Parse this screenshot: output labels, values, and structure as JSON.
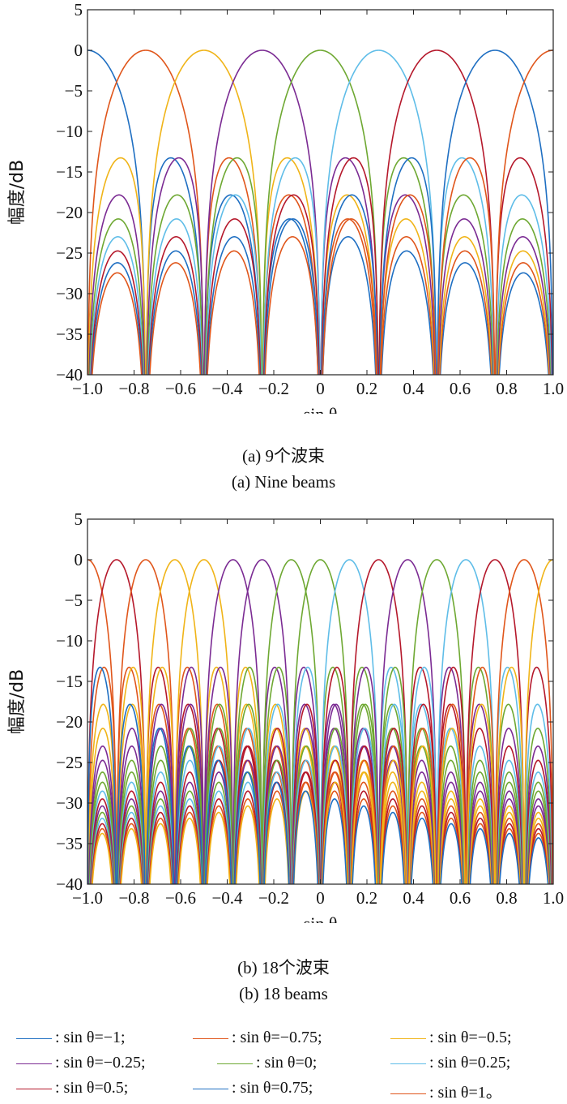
{
  "chart_data": [
    {
      "type": "line",
      "caption_cn": "(a) 9个波束",
      "caption_en": "(a) Nine beams",
      "xlabel": "sin θ",
      "ylabel": "幅度/dB",
      "xlim": [
        -1.0,
        1.0
      ],
      "ylim": [
        -40,
        5
      ],
      "x_ticks": [
        "−1.0",
        "−0.8",
        "−0.6",
        "−0.4",
        "−0.2",
        "0",
        "0.2",
        "0.4",
        "0.6",
        "0.8",
        "1.0"
      ],
      "y_ticks": [
        "5",
        "0",
        "−5",
        "−10",
        "−15",
        "−20",
        "−25",
        "−30",
        "−35",
        "−40"
      ],
      "beam_width_param": 0.25,
      "series": [
        {
          "steer": -1.0,
          "color": "#1f6fc2"
        },
        {
          "steer": -0.75,
          "color": "#e0561b"
        },
        {
          "steer": -0.5,
          "color": "#f0b418"
        },
        {
          "steer": -0.25,
          "color": "#7b2b93"
        },
        {
          "steer": 0,
          "color": "#6ea832"
        },
        {
          "steer": 0.25,
          "color": "#5fbde8"
        },
        {
          "steer": 0.5,
          "color": "#b5182b"
        },
        {
          "steer": 0.75,
          "color": "#1f6fc2"
        },
        {
          "steer": 1.0,
          "color": "#e0561b"
        }
      ]
    },
    {
      "type": "line",
      "caption_cn": "(b) 18个波束",
      "caption_en": "(b) 18 beams",
      "xlabel": "sin θ",
      "ylabel": "幅度/dB",
      "xlim": [
        -1.0,
        1.0
      ],
      "ylim": [
        -40,
        5
      ],
      "x_ticks": [
        "−1.0",
        "−0.8",
        "−0.6",
        "−0.4",
        "−0.2",
        "0",
        "0.2",
        "0.4",
        "0.6",
        "0.8",
        "1.0"
      ],
      "y_ticks": [
        "5",
        "0",
        "−5",
        "−10",
        "−15",
        "−20",
        "−25",
        "−30",
        "−35",
        "−40"
      ],
      "beam_width_param": 0.125,
      "series": [
        {
          "steer": -1.0,
          "color": "#e0561b"
        },
        {
          "steer": -0.875,
          "color": "#b5182b"
        },
        {
          "steer": -0.75,
          "color": "#e0561b"
        },
        {
          "steer": -0.625,
          "color": "#f0b418"
        },
        {
          "steer": -0.5,
          "color": "#f0b418"
        },
        {
          "steer": -0.375,
          "color": "#7b2b93"
        },
        {
          "steer": -0.25,
          "color": "#7b2b93"
        },
        {
          "steer": -0.125,
          "color": "#6ea832"
        },
        {
          "steer": 0,
          "color": "#6ea832"
        },
        {
          "steer": 0.125,
          "color": "#5fbde8"
        },
        {
          "steer": 0.25,
          "color": "#b5182b"
        },
        {
          "steer": 0.375,
          "color": "#7b2b93"
        },
        {
          "steer": 0.5,
          "color": "#6ea832"
        },
        {
          "steer": 0.625,
          "color": "#5fbde8"
        },
        {
          "steer": 0.75,
          "color": "#b5182b"
        },
        {
          "steer": 0.875,
          "color": "#e0561b"
        },
        {
          "steer": 1.0,
          "color": "#f0b418"
        },
        {
          "steer": -1.125,
          "color": "#1f6fc2"
        }
      ]
    }
  ],
  "legend": {
    "items": [
      {
        "label": ": sin θ=−1;",
        "color": "#1f6fc2"
      },
      {
        "label": ": sin θ=−0.75;",
        "color": "#e0561b"
      },
      {
        "label": ": sin θ=−0.5;",
        "color": "#f0b418"
      },
      {
        "label": ": sin θ=−0.25;",
        "color": "#7b2b93"
      },
      {
        "label": ": sin θ=0;",
        "color": "#6ea832"
      },
      {
        "label": ": sin θ=0.25;",
        "color": "#5fbde8"
      },
      {
        "label": ": sin θ=0.5;",
        "color": "#b5182b"
      },
      {
        "label": ": sin θ=0.75;",
        "color": "#1f6fc2"
      },
      {
        "label": ": sin θ=1。",
        "color": "#e0561b"
      }
    ]
  }
}
